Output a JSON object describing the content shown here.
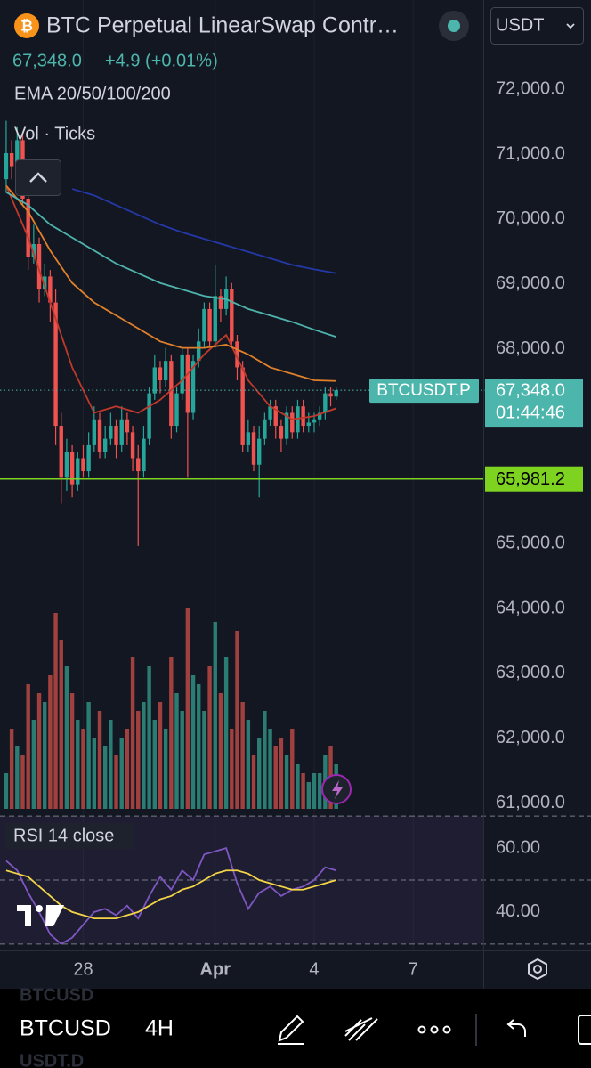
{
  "header": {
    "title": "BTC Perpetual LinearSwap Contr…",
    "quote": "67,348.0",
    "change": "+4.9 (+0.01%)",
    "currency": "USDT"
  },
  "toolbar": {
    "symbol": "BTCUSD",
    "interval": "4H",
    "watermarks": [
      "BTCUSD",
      "USDT.D"
    ]
  },
  "chart_data": [
    {
      "type": "candlestick",
      "indicator_label": "EMA 20/50/100/200",
      "x": [
        -56,
        -52,
        -48,
        -44,
        -40,
        -36,
        -32,
        -28,
        -24,
        -20,
        -16,
        -12,
        -8,
        -4,
        0,
        4,
        8,
        12,
        16,
        20,
        24,
        28,
        32,
        36,
        40,
        44,
        48,
        52,
        56,
        60,
        64,
        68,
        72,
        76,
        80,
        84,
        88,
        92,
        96,
        100,
        104,
        108,
        112,
        116,
        120,
        124,
        128,
        132,
        136,
        140,
        144,
        148,
        152,
        156,
        160,
        164,
        168,
        172,
        176,
        180,
        184
      ],
      "open": [
        70600,
        71000,
        70800,
        71200,
        70300,
        69400,
        69600,
        68900,
        69100,
        68700,
        66800,
        66000,
        66400,
        65900,
        66300,
        66100,
        66500,
        66900,
        66400,
        66600,
        66800,
        66500,
        66900,
        66700,
        66300,
        66100,
        66600,
        67300,
        67700,
        67500,
        67800,
        66800,
        67300,
        67900,
        67000,
        67800,
        68100,
        68600,
        68100,
        68800,
        68600,
        68900,
        68100,
        67700,
        66500,
        66700,
        66200,
        66600,
        66900,
        67100,
        66800,
        66600,
        67000,
        66700,
        67100,
        66800,
        66850,
        66900,
        67000,
        67300,
        67250
      ],
      "high": [
        71500,
        71200,
        71400,
        71300,
        70400,
        69900,
        69700,
        69300,
        69200,
        68900,
        67000,
        66600,
        66500,
        66400,
        66500,
        66700,
        67100,
        67000,
        66800,
        67000,
        66900,
        67100,
        67000,
        66800,
        66500,
        66800,
        67400,
        67900,
        67800,
        68000,
        67900,
        67400,
        68000,
        68000,
        67900,
        68300,
        68700,
        68700,
        69270,
        68900,
        69100,
        69000,
        68200,
        67800,
        66900,
        66800,
        66800,
        67000,
        67200,
        67200,
        66900,
        67100,
        67100,
        67200,
        67200,
        67000,
        67000,
        67100,
        67400,
        67400,
        67400
      ],
      "low": [
        70400,
        70600,
        70700,
        70200,
        69200,
        69300,
        68700,
        68800,
        68400,
        66500,
        65600,
        65800,
        65700,
        65800,
        66000,
        66000,
        66400,
        66300,
        66300,
        66500,
        66300,
        66400,
        66500,
        66100,
        64950,
        66000,
        66500,
        67200,
        67300,
        67400,
        66600,
        66700,
        67200,
        66000,
        66900,
        67700,
        68000,
        68000,
        68000,
        68400,
        68500,
        68000,
        67500,
        66400,
        66400,
        66100,
        65700,
        66500,
        66800,
        66600,
        66400,
        66500,
        66600,
        66600,
        66700,
        66700,
        66700,
        66800,
        66900,
        67100,
        67200
      ],
      "close": [
        71000,
        70800,
        71200,
        70300,
        69400,
        69600,
        68900,
        69100,
        68700,
        66800,
        66000,
        66400,
        65900,
        66300,
        66100,
        66500,
        66900,
        66400,
        66600,
        66800,
        66500,
        66900,
        66700,
        66300,
        66100,
        66600,
        67300,
        67700,
        67500,
        67800,
        66800,
        67300,
        67900,
        67000,
        67800,
        68100,
        68600,
        68100,
        68800,
        68600,
        68900,
        68100,
        67700,
        66500,
        66700,
        66200,
        66600,
        66900,
        67100,
        66800,
        66600,
        67000,
        66700,
        67100,
        66800,
        66850,
        66900,
        67000,
        67300,
        67250,
        67348
      ],
      "up_color": "#26a69a",
      "down_color": "#ef5350",
      "series": [
        {
          "color": "#c0392b",
          "x": [
            -56,
            -40,
            -24,
            -8,
            8,
            24,
            40,
            56,
            72,
            88,
            104,
            120,
            136,
            152,
            168,
            184
          ],
          "values": [
            70500,
            69700,
            68700,
            67700,
            67000,
            67100,
            67000,
            67200,
            67500,
            67900,
            68200,
            67500,
            67100,
            66900,
            66950,
            67070
          ]
        },
        {
          "color": "#e0802a",
          "x": [
            -56,
            -40,
            -24,
            -8,
            8,
            24,
            40,
            56,
            72,
            88,
            104,
            120,
            136,
            152,
            168,
            184
          ],
          "values": [
            70500,
            70100,
            69500,
            69000,
            68700,
            68500,
            68300,
            68100,
            68000,
            68000,
            68050,
            67900,
            67700,
            67600,
            67500,
            67490
          ]
        },
        {
          "color": "#4fb3ad",
          "x": [
            -56,
            -40,
            -24,
            -8,
            8,
            24,
            40,
            56,
            72,
            88,
            104,
            120,
            136,
            152,
            168,
            184
          ],
          "values": [
            70400,
            70200,
            69900,
            69700,
            69500,
            69300,
            69150,
            69000,
            68900,
            68800,
            68750,
            68600,
            68500,
            68400,
            68280,
            68170
          ]
        },
        {
          "color": "#2438a8",
          "x": [
            -56,
            -40,
            -24,
            -8,
            8,
            24,
            40,
            56,
            72,
            88,
            104,
            120,
            136,
            152,
            168,
            184
          ],
          "values": [
            null,
            null,
            null,
            70450,
            70350,
            70200,
            70050,
            69900,
            69780,
            69680,
            69580,
            69480,
            69380,
            69280,
            69210,
            69150
          ]
        }
      ],
      "xlim": [
        -60.5,
        291
      ],
      "ylim": [
        60900,
        73360
      ],
      "xticks": [
        {
          "value": 0,
          "label": "28"
        },
        {
          "value": 96,
          "label": "Apr"
        },
        {
          "value": 168,
          "label": "4"
        },
        {
          "value": 240,
          "label": "7"
        }
      ],
      "yticks": [
        {
          "value": 72000,
          "label": "72,000.0"
        },
        {
          "value": 71000,
          "label": "71,000.0"
        },
        {
          "value": 70000,
          "label": "70,000.0"
        },
        {
          "value": 69000,
          "label": "69,000.0"
        },
        {
          "value": 68000,
          "label": "68,000.0"
        },
        {
          "value": 65000,
          "label": "65,000.0"
        },
        {
          "value": 64000,
          "label": "64,000.0"
        },
        {
          "value": 63000,
          "label": "63,000.0"
        },
        {
          "value": 62000,
          "label": "62,000.0"
        },
        {
          "value": 61000,
          "label": "61,000.0"
        }
      ],
      "grid": true,
      "last_price": {
        "value": 67348.0,
        "label": "67,348.0",
        "symbol": "BTCUSDT.P",
        "countdown": "01:44:46",
        "color": "#4db6ac"
      },
      "hline": {
        "value": 65981.2,
        "label": "65,981.2",
        "color": "#7ed321"
      }
    },
    {
      "type": "bar",
      "title": "Vol · Ticks",
      "x": [
        -56,
        -52,
        -48,
        -44,
        -40,
        -36,
        -32,
        -28,
        -24,
        -20,
        -16,
        -12,
        -8,
        -4,
        0,
        4,
        8,
        12,
        16,
        20,
        24,
        28,
        32,
        36,
        40,
        44,
        48,
        52,
        56,
        60,
        64,
        68,
        72,
        76,
        80,
        84,
        88,
        92,
        96,
        100,
        104,
        108,
        112,
        116,
        120,
        124,
        128,
        132,
        136,
        140,
        144,
        148,
        152,
        156,
        160,
        164,
        168,
        172,
        176,
        180,
        184
      ],
      "values": [
        40,
        90,
        70,
        60,
        140,
        100,
        130,
        120,
        150,
        220,
        190,
        160,
        130,
        100,
        90,
        120,
        80,
        110,
        70,
        100,
        60,
        80,
        90,
        170,
        110,
        120,
        160,
        100,
        120,
        90,
        170,
        130,
        110,
        225,
        150,
        140,
        110,
        160,
        210,
        130,
        170,
        90,
        200,
        120,
        100,
        60,
        80,
        110,
        90,
        70,
        80,
        60,
        90,
        50,
        40,
        30,
        40,
        40,
        60,
        70,
        50
      ],
      "up_color": "#2b7d74",
      "down_color": "#a1413f"
    },
    {
      "type": "line",
      "title": "RSI 14 close",
      "series": [
        {
          "color": "#7e57c2",
          "x": [
            -56,
            -48,
            -40,
            -32,
            -24,
            -16,
            -8,
            0,
            8,
            16,
            24,
            32,
            40,
            48,
            56,
            64,
            72,
            80,
            88,
            96,
            104,
            112,
            120,
            128,
            136,
            144,
            152,
            160,
            168,
            176,
            184
          ],
          "values": [
            56,
            53,
            46,
            40,
            33,
            30,
            32,
            36,
            40,
            41,
            39,
            42,
            38,
            45,
            51,
            47,
            53,
            50,
            58,
            59,
            60,
            49,
            41,
            46,
            48,
            45,
            47,
            48,
            50,
            54,
            53
          ]
        },
        {
          "color": "#f5d547",
          "x": [
            -56,
            -48,
            -40,
            -32,
            -24,
            -16,
            -8,
            0,
            8,
            16,
            24,
            32,
            40,
            48,
            56,
            64,
            72,
            80,
            88,
            96,
            104,
            112,
            120,
            128,
            136,
            144,
            152,
            160,
            168,
            176,
            184
          ],
          "values": [
            53,
            52,
            51,
            48,
            45,
            42,
            40,
            39,
            38,
            38,
            38,
            39,
            40,
            42,
            44,
            45,
            47,
            48,
            50,
            52,
            53,
            53,
            52,
            50,
            49,
            48,
            47,
            47,
            48,
            49,
            50
          ]
        }
      ],
      "xlim": [
        -60.5,
        291
      ],
      "ylim": [
        28,
        72
      ],
      "yticks": [
        {
          "value": 60,
          "label": "60.00"
        },
        {
          "value": 40,
          "label": "40.00"
        }
      ],
      "levels": [
        70,
        50,
        30
      ]
    }
  ]
}
